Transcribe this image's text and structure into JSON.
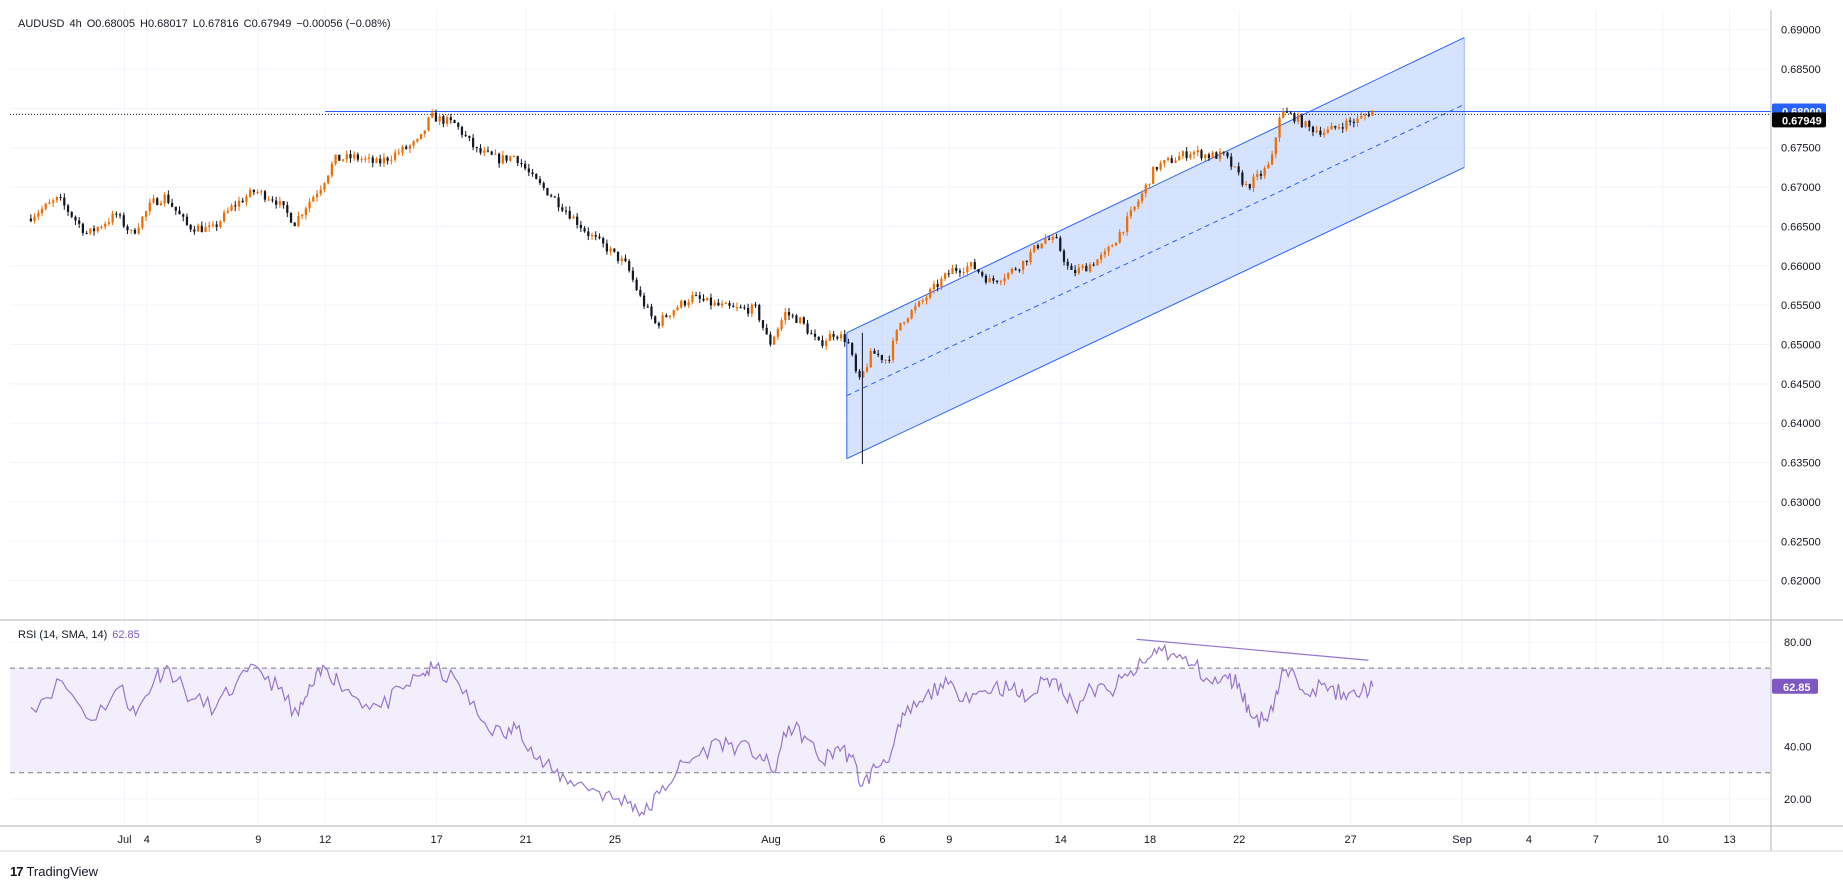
{
  "header": {
    "symbol": "AUDUSD",
    "interval": "4h",
    "open": "O0.68005",
    "high": "H0.68017",
    "low": "L0.67816",
    "close": "C0.67949",
    "change": "−0.00056 (−0.08%)"
  },
  "rsi_legend": {
    "name": "RSI (14, SMA, 14)",
    "value": "62.85"
  },
  "brand": {
    "logo": "17",
    "name": "TradingView"
  },
  "colors": {
    "up": "#ef6c00",
    "down": "#131722",
    "channel_line": "#2962ff",
    "channel_fill": "#bbd0ff",
    "rsi_line": "#9575cd",
    "rsi_band": "#f3eefb",
    "level_label": "#2962ff",
    "price_label": "#000000"
  },
  "chart_data": [
    {
      "type": "candlestick",
      "symbol": "AUDUSD",
      "interval": "4h",
      "ylim": [
        0.615,
        0.6925
      ],
      "y_ticks": [
        "0.62000",
        "0.62500",
        "0.63000",
        "0.63500",
        "0.64000",
        "0.64500",
        "0.65000",
        "0.65500",
        "0.66000",
        "0.66500",
        "0.67000",
        "0.67500",
        "0.68000",
        "0.68500",
        "0.69000"
      ],
      "x_ticks": [
        {
          "label": "Jul",
          "d": 3
        },
        {
          "label": "4",
          "d": 4
        },
        {
          "label": "9",
          "d": 9
        },
        {
          "label": "12",
          "d": 12
        },
        {
          "label": "17",
          "d": 17
        },
        {
          "label": "21",
          "d": 21
        },
        {
          "label": "25",
          "d": 25
        },
        {
          "label": "Aug",
          "d": 32
        },
        {
          "label": "6",
          "d": 37
        },
        {
          "label": "9",
          "d": 40
        },
        {
          "label": "14",
          "d": 45
        },
        {
          "label": "18",
          "d": 49
        },
        {
          "label": "22",
          "d": 53
        },
        {
          "label": "27",
          "d": 58
        },
        {
          "label": "Sep",
          "d": 63
        },
        {
          "label": "4",
          "d": 66
        },
        {
          "label": "7",
          "d": 69
        },
        {
          "label": "10",
          "d": 72
        },
        {
          "label": "13",
          "d": 75
        }
      ],
      "price_anchors": [
        {
          "d": -1.2,
          "p": 0.666
        },
        {
          "d": 0.2,
          "p": 0.6685
        },
        {
          "d": 1.5,
          "p": 0.664
        },
        {
          "d": 2.8,
          "p": 0.6665
        },
        {
          "d": 3.5,
          "p": 0.664
        },
        {
          "d": 4.4,
          "p": 0.668
        },
        {
          "d": 5.0,
          "p": 0.6688
        },
        {
          "d": 6.0,
          "p": 0.665
        },
        {
          "d": 7.1,
          "p": 0.6646
        },
        {
          "d": 8.0,
          "p": 0.6675
        },
        {
          "d": 9.0,
          "p": 0.6695
        },
        {
          "d": 9.9,
          "p": 0.6685
        },
        {
          "d": 10.8,
          "p": 0.6655
        },
        {
          "d": 11.4,
          "p": 0.668
        },
        {
          "d": 12.0,
          "p": 0.6702
        },
        {
          "d": 12.6,
          "p": 0.6735
        },
        {
          "d": 13.5,
          "p": 0.6738
        },
        {
          "d": 14.5,
          "p": 0.673
        },
        {
          "d": 15.5,
          "p": 0.6745
        },
        {
          "d": 16.4,
          "p": 0.6758
        },
        {
          "d": 16.9,
          "p": 0.679
        },
        {
          "d": 18.0,
          "p": 0.678
        },
        {
          "d": 19.0,
          "p": 0.6745
        },
        {
          "d": 20.0,
          "p": 0.6735
        },
        {
          "d": 20.7,
          "p": 0.674
        },
        {
          "d": 21.5,
          "p": 0.671
        },
        {
          "d": 22.3,
          "p": 0.669
        },
        {
          "d": 23.0,
          "p": 0.667
        },
        {
          "d": 24.0,
          "p": 0.664
        },
        {
          "d": 24.9,
          "p": 0.662
        },
        {
          "d": 25.7,
          "p": 0.66
        },
        {
          "d": 26.3,
          "p": 0.656
        },
        {
          "d": 27.0,
          "p": 0.6525
        },
        {
          "d": 27.8,
          "p": 0.6545
        },
        {
          "d": 28.6,
          "p": 0.656
        },
        {
          "d": 29.7,
          "p": 0.655
        },
        {
          "d": 30.5,
          "p": 0.6545
        },
        {
          "d": 31.5,
          "p": 0.6545
        },
        {
          "d": 32.1,
          "p": 0.65
        },
        {
          "d": 32.8,
          "p": 0.654
        },
        {
          "d": 33.5,
          "p": 0.653
        },
        {
          "d": 34.3,
          "p": 0.65
        },
        {
          "d": 35.0,
          "p": 0.6515
        },
        {
          "d": 35.6,
          "p": 0.6505
        },
        {
          "d": 36.1,
          "p": 0.645
        },
        {
          "d": 36.7,
          "p": 0.649
        },
        {
          "d": 37.4,
          "p": 0.648
        },
        {
          "d": 38.0,
          "p": 0.653
        },
        {
          "d": 38.8,
          "p": 0.655
        },
        {
          "d": 39.6,
          "p": 0.6575
        },
        {
          "d": 40.3,
          "p": 0.6595
        },
        {
          "d": 41.2,
          "p": 0.66
        },
        {
          "d": 42.0,
          "p": 0.658
        },
        {
          "d": 42.8,
          "p": 0.659
        },
        {
          "d": 43.5,
          "p": 0.6605
        },
        {
          "d": 44.4,
          "p": 0.6635
        },
        {
          "d": 45.0,
          "p": 0.663
        },
        {
          "d": 45.6,
          "p": 0.659
        },
        {
          "d": 46.4,
          "p": 0.66
        },
        {
          "d": 47.2,
          "p": 0.6615
        },
        {
          "d": 48.0,
          "p": 0.665
        },
        {
          "d": 48.8,
          "p": 0.669
        },
        {
          "d": 49.4,
          "p": 0.6725
        },
        {
          "d": 50.2,
          "p": 0.6735
        },
        {
          "d": 51.0,
          "p": 0.6745
        },
        {
          "d": 51.8,
          "p": 0.674
        },
        {
          "d": 52.5,
          "p": 0.674
        },
        {
          "d": 53.0,
          "p": 0.672
        },
        {
          "d": 53.5,
          "p": 0.67
        },
        {
          "d": 54.1,
          "p": 0.6715
        },
        {
          "d": 54.6,
          "p": 0.673
        },
        {
          "d": 55.0,
          "p": 0.6795
        },
        {
          "d": 55.6,
          "p": 0.679
        },
        {
          "d": 56.3,
          "p": 0.6775
        },
        {
          "d": 57.1,
          "p": 0.677
        },
        {
          "d": 57.8,
          "p": 0.678
        },
        {
          "d": 58.5,
          "p": 0.6785
        },
        {
          "d": 59.0,
          "p": 0.6795
        }
      ],
      "shapes": {
        "channel": {
          "upper": [
            {
              "d": 35.4,
              "p": 0.6515
            },
            {
              "d": 63.1,
              "p": 0.689
            }
          ],
          "lower": [
            {
              "d": 35.4,
              "p": 0.6355
            },
            {
              "d": 63.1,
              "p": 0.6725
            }
          ],
          "mid": [
            {
              "d": 35.4,
              "p": 0.6435
            },
            {
              "d": 63.1,
              "p": 0.6805
            }
          ]
        },
        "resistance_line": {
          "from_d": 12.0,
          "to_d": 80,
          "p": 0.6796
        },
        "current_price_line": {
          "p": 0.67949
        }
      },
      "level_label": "0.68000",
      "current_price_label": "0.67949"
    },
    {
      "type": "line",
      "name": "RSI (14, SMA, 14)",
      "ylim": [
        10,
        88
      ],
      "y_ticks": [
        "20.00",
        "40.00",
        "80.00"
      ],
      "bands": {
        "upper": 70,
        "lower": 30
      },
      "value_label": "62.85",
      "x": [
        -1.2,
        0.2,
        1.5,
        2.8,
        3.5,
        4.4,
        5.0,
        6.0,
        7.1,
        8.0,
        9.0,
        9.9,
        10.8,
        11.4,
        12.0,
        12.6,
        13.5,
        14.5,
        15.5,
        16.4,
        16.9,
        18.0,
        19.0,
        20.0,
        20.7,
        21.5,
        22.3,
        23.0,
        24.0,
        24.9,
        25.7,
        26.3,
        27.0,
        27.8,
        28.6,
        29.7,
        30.5,
        31.5,
        32.1,
        32.8,
        33.5,
        34.3,
        35.0,
        35.6,
        36.1,
        36.7,
        37.4,
        38.0,
        38.8,
        39.6,
        40.3,
        41.2,
        42.0,
        42.8,
        43.5,
        44.4,
        45.0,
        45.6,
        46.4,
        47.2,
        48.0,
        48.8,
        49.4,
        50.2,
        51.0,
        51.8,
        52.5,
        53.0,
        53.5,
        54.1,
        54.6,
        55.0,
        55.6,
        56.3,
        57.1,
        57.8,
        58.5,
        59.0
      ],
      "values": [
        55,
        65,
        50,
        63,
        52,
        67,
        70,
        58,
        55,
        64,
        70,
        62,
        52,
        63,
        70,
        65,
        58,
        55,
        62,
        68,
        70,
        64,
        50,
        44,
        48,
        35,
        30,
        27,
        24,
        20,
        19,
        14,
        22,
        31,
        36,
        42,
        40,
        37,
        30,
        48,
        44,
        34,
        40,
        36,
        25,
        32,
        38,
        52,
        57,
        64,
        61,
        60,
        63,
        62,
        58,
        66,
        64,
        55,
        62,
        61,
        67,
        72,
        78,
        74,
        71,
        64,
        66,
        64,
        52,
        50,
        58,
        69,
        65,
        62,
        63,
        58,
        61,
        62.85
      ],
      "divergence_line": [
        {
          "d": 48.4,
          "v": 81
        },
        {
          "d": 58.8,
          "v": 73
        }
      ]
    }
  ]
}
